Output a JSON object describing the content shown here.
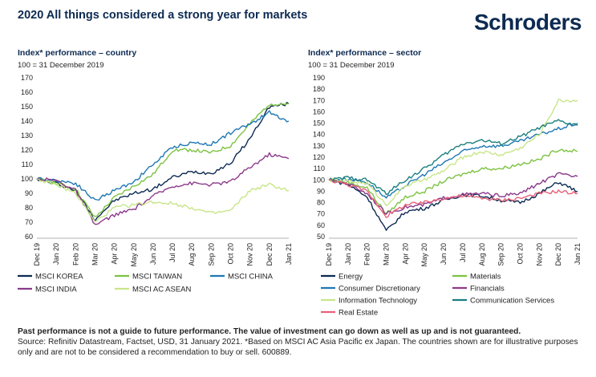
{
  "page": {
    "title": "2020 All things considered a strong year for markets",
    "brand": "Schroders",
    "footer_bold": "Past performance is not a guide to future performance. The value of investment can go down as well as up and is not guaranteed.",
    "footer_text": "Source: Refinitiv Datastream, Factset, USD, 31 January 2021. *Based on MSCI AC Asia Pacific ex Japan. The countries shown are for illustrative purposes only and are not to be considered a recommendation to buy or sell. 600889."
  },
  "chart_data": [
    {
      "type": "line",
      "title": "Index* performance – country",
      "subtitle": "100 = 31 December 2019",
      "x": [
        "Dec 19",
        "Jan 20",
        "Feb 20",
        "Mar 20",
        "Apr 20",
        "May 20",
        "Jun 20",
        "Jul 20",
        "Aug 20",
        "Sep 20",
        "Oct 20",
        "Nov 20",
        "Dec 20",
        "Jan 21"
      ],
      "ylim": [
        60,
        170
      ],
      "yticks": [
        60,
        70,
        80,
        90,
        100,
        110,
        120,
        130,
        140,
        150,
        160,
        170
      ],
      "grid": false,
      "legend_position": "bottom",
      "series": [
        {
          "name": "MSCI KOREA",
          "color": "#0d2a52",
          "values": [
            100,
            97,
            92,
            72,
            85,
            90,
            93,
            101,
            105,
            104,
            111,
            128,
            150,
            152
          ]
        },
        {
          "name": "MSCI TAIWAN",
          "color": "#7dc242",
          "values": [
            100,
            97,
            93,
            73,
            87,
            95,
            103,
            120,
            120,
            118,
            123,
            138,
            152,
            152
          ]
        },
        {
          "name": "MSCI CHINA",
          "color": "#1f78b4",
          "values": [
            100,
            99,
            97,
            85,
            92,
            98,
            110,
            122,
            125,
            124,
            132,
            138,
            146,
            140
          ]
        },
        {
          "name": "MSCI INDIA",
          "color": "#8b3a8b",
          "values": [
            100,
            99,
            92,
            68,
            75,
            79,
            88,
            95,
            97,
            96,
            98,
            108,
            117,
            114
          ]
        },
        {
          "name": "MSCI AC ASEAN",
          "color": "#c8e68a",
          "values": [
            100,
            96,
            90,
            70,
            80,
            82,
            84,
            83,
            80,
            76,
            78,
            92,
            96,
            92
          ]
        }
      ]
    },
    {
      "type": "line",
      "title": "Index* performance – sector",
      "subtitle": "100 = 31 December 2019",
      "x": [
        "Dec 19",
        "Jan 20",
        "Feb 20",
        "Mar 20",
        "Apr 20",
        "May 20",
        "Jun 20",
        "Jul 20",
        "Aug 20",
        "Sep 20",
        "Oct 20",
        "Nov 20",
        "Dec 20",
        "Jan 21"
      ],
      "ylim": [
        50,
        190
      ],
      "yticks": [
        50,
        60,
        70,
        80,
        90,
        100,
        110,
        120,
        130,
        140,
        150,
        160,
        170,
        180,
        190
      ],
      "grid": false,
      "legend_position": "bottom",
      "series": [
        {
          "name": "Energy",
          "color": "#0d2a52",
          "values": [
            100,
            96,
            85,
            55,
            72,
            75,
            82,
            87,
            86,
            82,
            80,
            88,
            98,
            90
          ]
        },
        {
          "name": "Materials",
          "color": "#7dc242",
          "values": [
            100,
            98,
            93,
            70,
            85,
            90,
            99,
            105,
            110,
            110,
            114,
            118,
            127,
            125
          ]
        },
        {
          "name": "Consumer Discretionary",
          "color": "#1f78b4",
          "values": [
            100,
            101,
            98,
            84,
            95,
            105,
            115,
            125,
            130,
            130,
            134,
            140,
            145,
            150
          ]
        },
        {
          "name": "Financials",
          "color": "#8b3a8b",
          "values": [
            100,
            97,
            88,
            70,
            76,
            78,
            84,
            87,
            88,
            86,
            88,
            97,
            105,
            103
          ]
        },
        {
          "name": "Information Technology",
          "color": "#c8e68a",
          "values": [
            100,
            99,
            97,
            78,
            95,
            100,
            108,
            120,
            125,
            122,
            128,
            140,
            170,
            170
          ]
        },
        {
          "name": "Communication Services",
          "color": "#1a7f7f",
          "values": [
            100,
            102,
            100,
            88,
            100,
            110,
            122,
            132,
            135,
            132,
            138,
            146,
            152,
            148
          ]
        },
        {
          "name": "Real Estate",
          "color": "#e8607a",
          "values": [
            100,
            96,
            90,
            68,
            78,
            80,
            84,
            86,
            84,
            82,
            84,
            88,
            90,
            88
          ]
        }
      ]
    }
  ]
}
